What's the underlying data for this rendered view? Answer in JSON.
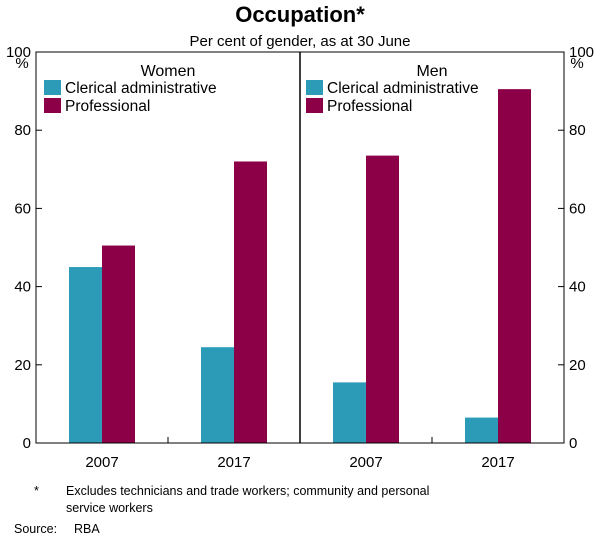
{
  "chart_data": {
    "type": "bar",
    "title": "Occupation*",
    "subtitle": "Per cent of gender, as at 30 June",
    "ylabel_left": "%",
    "ylabel_right": "%",
    "ylim": [
      0,
      100
    ],
    "yticks": [
      0,
      20,
      40,
      60,
      80,
      100
    ],
    "grid": false,
    "legend_position": "top-left",
    "colors": {
      "clerical": "#2b9bb8",
      "professional": "#8b0046"
    },
    "panels": [
      {
        "title": "Women",
        "categories": [
          "2007",
          "2017"
        ],
        "series": [
          {
            "name": "Clerical administrative",
            "values": [
              45,
              24.5
            ]
          },
          {
            "name": "Professional",
            "values": [
              50.5,
              72
            ]
          }
        ]
      },
      {
        "title": "Men",
        "categories": [
          "2007",
          "2017"
        ],
        "series": [
          {
            "name": "Clerical administrative",
            "values": [
              15.5,
              6.5
            ]
          },
          {
            "name": "Professional",
            "values": [
              73.5,
              90.5
            ]
          }
        ]
      }
    ],
    "footnote_marker": "*",
    "footnote": [
      "Excludes technicians and trade workers; community and personal",
      "service workers"
    ],
    "source_label": "Source:",
    "source": "RBA"
  }
}
